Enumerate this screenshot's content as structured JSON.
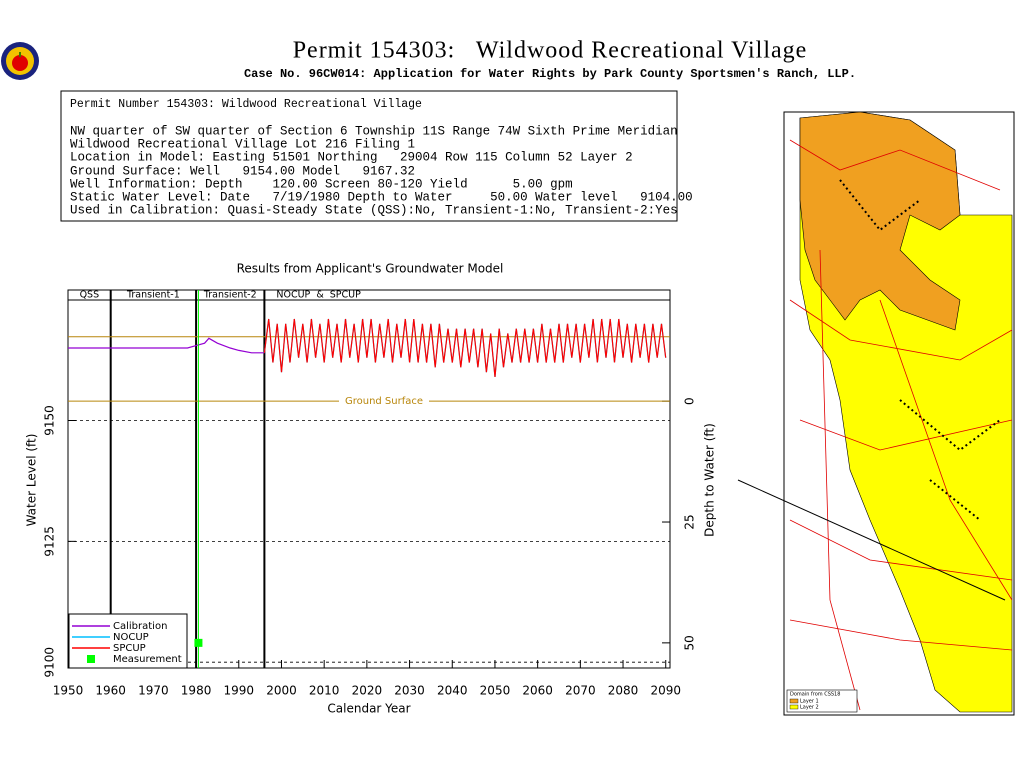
{
  "header": {
    "title": "Permit 154303:   Wildwood Recreational Village",
    "subtitle": "Case No. 96CW014: Application for Water Rights by Park County Sportsmen's Ranch, LLP."
  },
  "info": {
    "lines": [
      "Permit Number 154303: Wildwood Recreational Village",
      "NW quarter of SW quarter of Section 6 Township 11S Range 74W Sixth Prime Meridian",
      "Wildwood Recreational Village Lot 216 Filing 1",
      "Location in Model: Easting 51501 Northing   29004 Row 115 Column 52 Layer 2",
      "Ground Surface: Well   9154.00 Model   9167.32",
      "Well Information: Depth    120.00 Screen 80-120 Yield      5.00 gpm",
      "Static Water Level: Date   7/19/1980 Depth to Water     50.00 Water level   9104.00",
      "Used in Calibration: Quasi-Steady State (QSS):No, Transient-1:No, Transient-2:Yes"
    ]
  },
  "chart_data": {
    "type": "line",
    "title": "Results from Applicant's Groundwater Model",
    "xlabel": "Calendar Year",
    "ylabel": "Water Level (ft)",
    "y2label": "Depth to Water (ft)",
    "xlim": [
      1950,
      2091
    ],
    "xticks": [
      1950,
      1960,
      1970,
      1980,
      1990,
      2000,
      2010,
      2020,
      2030,
      2040,
      2050,
      2060,
      2070,
      2080,
      2090
    ],
    "ylim": [
      9098.8,
      9177
    ],
    "yticks": [
      9100,
      9125,
      9150
    ],
    "y2lim": [
      55.2,
      -23
    ],
    "y2ticks": [
      0,
      25,
      50
    ],
    "grid": true,
    "legend": "lower left",
    "periods": [
      {
        "label": "QSS",
        "start": 1950,
        "end": 1960
      },
      {
        "label": "Transient-1",
        "start": 1960,
        "end": 1980
      },
      {
        "label": "Transient-2",
        "start": 1980,
        "end": 1996
      },
      {
        "label": "NOCUP  &  SPCUP",
        "start": 1996,
        "end": 2091
      }
    ],
    "reference_lines": [
      {
        "value": 9167.32,
        "color": "#b8860b"
      },
      {
        "value": 9154,
        "label": "Ground Surface",
        "color": "#b8860b"
      }
    ],
    "x": [
      1996,
      1997,
      1998,
      1999,
      2000,
      2001,
      2002,
      2003,
      2004,
      2005,
      2006,
      2007,
      2008,
      2009,
      2010,
      2011,
      2012,
      2013,
      2014,
      2015,
      2016,
      2017,
      2018,
      2019,
      2020,
      2021,
      2022,
      2023,
      2024,
      2025,
      2026,
      2027,
      2028,
      2029,
      2030,
      2031,
      2032,
      2033,
      2034,
      2035,
      2036,
      2037,
      2038,
      2039,
      2040,
      2041,
      2042,
      2043,
      2044,
      2045,
      2046,
      2047,
      2048,
      2049,
      2050,
      2051,
      2052,
      2053,
      2054,
      2055,
      2056,
      2057,
      2058,
      2059,
      2060,
      2061,
      2062,
      2063,
      2064,
      2065,
      2066,
      2067,
      2068,
      2069,
      2070,
      2071,
      2072,
      2073,
      2074,
      2075,
      2076,
      2077,
      2078,
      2079,
      2080,
      2081,
      2082,
      2083,
      2084,
      2085,
      2086,
      2087,
      2088,
      2089,
      2090
    ],
    "series": [
      {
        "name": "Calibration",
        "color": "#9400d3",
        "x": [
          1950,
          1960,
          1970,
          1978,
          1980,
          1982,
          1983,
          1985,
          1988,
          1990,
          1993,
          1996
        ],
        "values": [
          9165,
          9165,
          9165,
          9165,
          9165.5,
          9166,
          9167,
          9166,
          9165,
          9164.5,
          9164,
          9164
        ]
      },
      {
        "name": "NOCUP",
        "color": "#00bfff",
        "values": [
          9164,
          9171,
          9162,
          9170,
          9160,
          9170,
          9162,
          9171,
          9163,
          9170,
          9162,
          9171,
          9163,
          9170,
          9162,
          9171,
          9163,
          9170,
          9162,
          9171,
          9163,
          9170,
          9162,
          9171,
          9163,
          9171,
          9162,
          9170,
          9163,
          9171,
          9162,
          9170,
          9163,
          9171,
          9162,
          9171,
          9162,
          9170,
          9162,
          9170,
          9161,
          9170,
          9162,
          9169,
          9162,
          9169,
          9161,
          9169,
          9162,
          9169,
          9161,
          9169,
          9160,
          9168,
          9159,
          9169,
          9161,
          9168,
          9162,
          9169,
          9162,
          9169,
          9162,
          9169,
          9162,
          9170,
          9162,
          9169,
          9162,
          9170,
          9162,
          9170,
          9163,
          9170,
          9162,
          9170,
          9163,
          9171,
          9162,
          9171,
          9163,
          9171,
          9162,
          9171,
          9163,
          9170,
          9162,
          9170,
          9163,
          9170,
          9162,
          9170,
          9163,
          9170,
          9163
        ]
      },
      {
        "name": "SPCUP",
        "color": "#ff0000",
        "values": [
          9164,
          9171,
          9162,
          9170,
          9160,
          9170,
          9162,
          9171,
          9163,
          9170,
          9162,
          9171,
          9163,
          9170,
          9162,
          9171,
          9163,
          9170,
          9162,
          9171,
          9163,
          9170,
          9162,
          9171,
          9163,
          9171,
          9162,
          9170,
          9163,
          9171,
          9162,
          9170,
          9163,
          9171,
          9162,
          9171,
          9162,
          9170,
          9162,
          9170,
          9161,
          9170,
          9162,
          9169,
          9162,
          9169,
          9161,
          9169,
          9162,
          9169,
          9161,
          9169,
          9160,
          9168,
          9159,
          9169,
          9161,
          9168,
          9162,
          9169,
          9162,
          9169,
          9162,
          9169,
          9162,
          9170,
          9162,
          9169,
          9162,
          9170,
          9162,
          9170,
          9163,
          9170,
          9162,
          9170,
          9163,
          9171,
          9162,
          9171,
          9163,
          9171,
          9162,
          9171,
          9163,
          9170,
          9162,
          9170,
          9163,
          9170,
          9162,
          9170,
          9163,
          9170,
          9163
        ]
      },
      {
        "name": "Measurement",
        "color": "#00ff00",
        "marker": "square",
        "x": [
          1980.55
        ],
        "values": [
          9104
        ]
      }
    ]
  },
  "map": {
    "legend_title": "Domain from CSS18",
    "legend": [
      {
        "name": "Layer 1",
        "color": "#f0a020"
      },
      {
        "name": "Layer 2",
        "color": "#ffff00"
      }
    ]
  }
}
